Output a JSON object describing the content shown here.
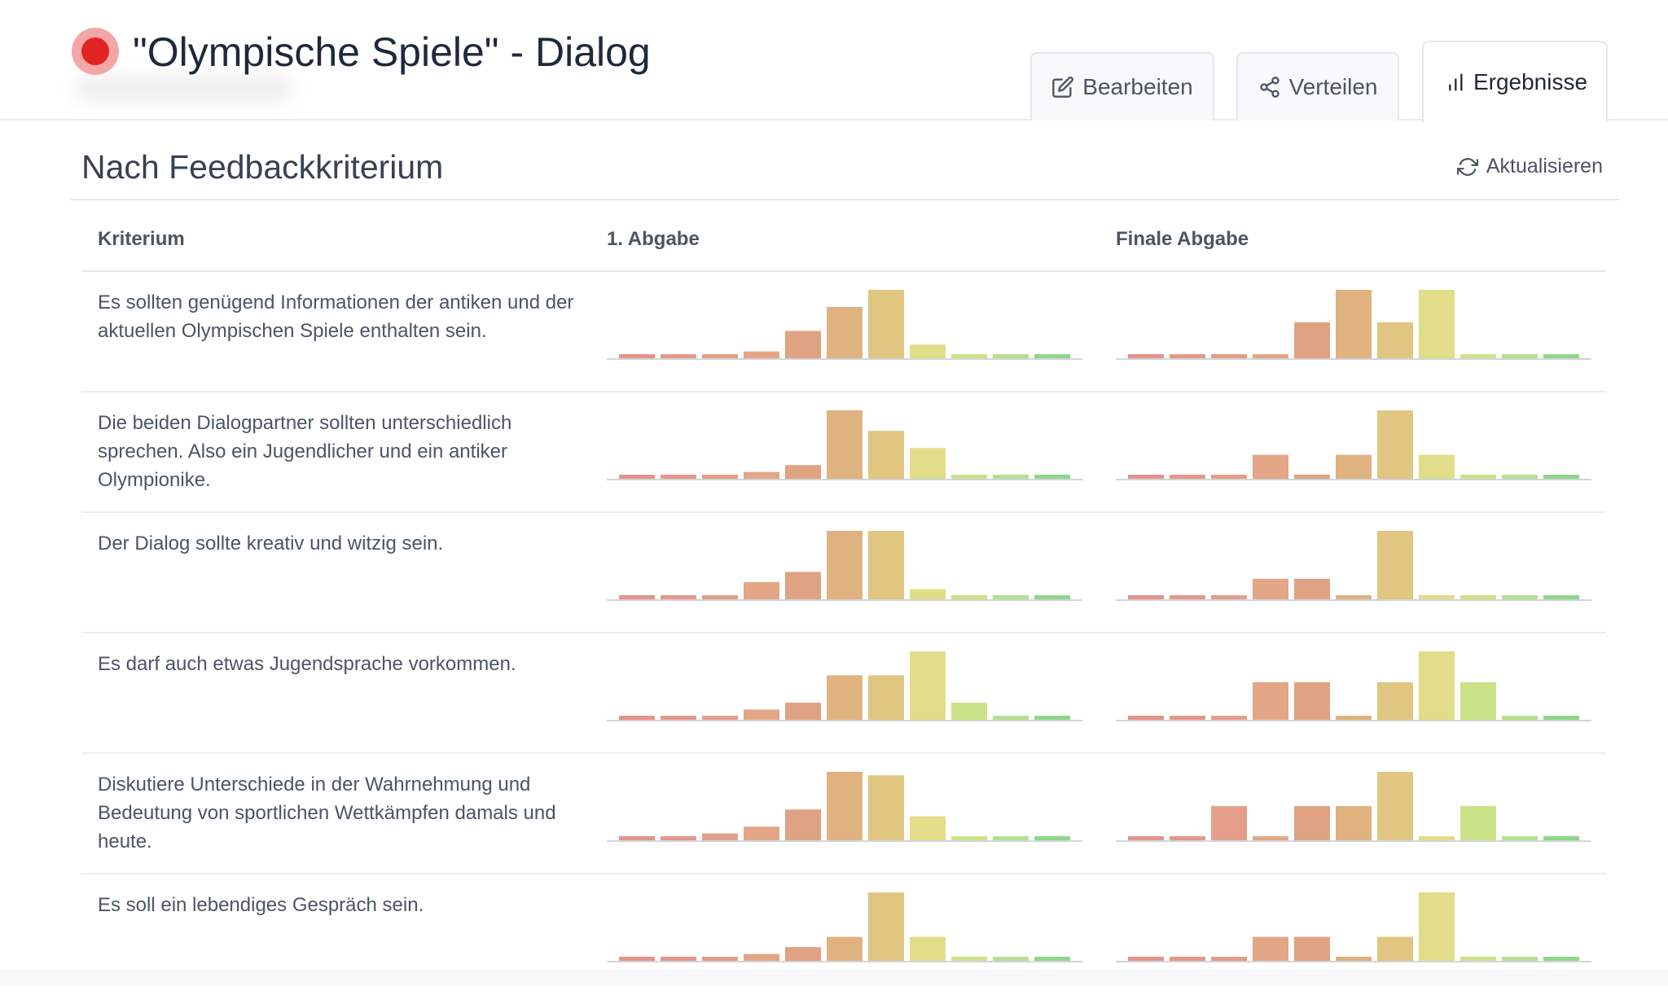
{
  "header": {
    "title": "\"Olympische Spiele\" - Dialog",
    "tabs": [
      {
        "label": "Bearbeiten",
        "icon": "edit-icon",
        "active": false
      },
      {
        "label": "Verteilen",
        "icon": "share-icon",
        "active": false
      },
      {
        "label": "Ergebnisse",
        "icon": "bar-chart-icon",
        "active": true
      }
    ]
  },
  "section": {
    "title": "Nach Feedbackkriterium",
    "refresh_label": "Aktualisieren"
  },
  "table": {
    "headers": [
      "Kriterium",
      "1. Abgabe",
      "Finale Abgabe"
    ]
  },
  "colors": {
    "scale": [
      "#e5938b",
      "#e5988a",
      "#e49e89",
      "#e3a687",
      "#dfa283",
      "#dfb27f",
      "#e0c680",
      "#e1dd89",
      "#cbe288",
      "#b6e090",
      "#8fd68a"
    ],
    "accent_record": "#e02424"
  },
  "chart_data": [
    {
      "type": "bar",
      "criterion": "Es sollten genügend Informationen der antiken und der aktuellen Olympischen Spiele enthalten sein.",
      "series": [
        {
          "values": [
            1,
            1,
            1,
            2,
            8,
            15,
            20,
            4,
            1,
            1,
            1
          ]
        },
        {
          "values": [
            1,
            1,
            1,
            1,
            10,
            19,
            10,
            19,
            1,
            1,
            1
          ]
        }
      ]
    },
    {
      "type": "bar",
      "criterion": "Die beiden Dialogpartner sollten unterschiedlich sprechen. Also ein Jugendlicher und ein antiker Olympionike.",
      "series": [
        {
          "values": [
            1,
            1,
            1,
            2,
            4,
            20,
            14,
            9,
            1,
            1,
            1
          ]
        },
        {
          "values": [
            1,
            1,
            1,
            7,
            1,
            7,
            20,
            7,
            1,
            1,
            1
          ]
        }
      ]
    },
    {
      "type": "bar",
      "criterion": "Der Dialog sollte kreativ und witzig sein.",
      "series": [
        {
          "values": [
            1,
            1,
            1,
            5,
            8,
            20,
            20,
            3,
            1,
            1,
            1
          ]
        },
        {
          "values": [
            1,
            1,
            1,
            6,
            6,
            1,
            20,
            1,
            1,
            1,
            1
          ]
        }
      ]
    },
    {
      "type": "bar",
      "criterion": "Es darf auch etwas Jugendsprache vorkommen.",
      "series": [
        {
          "values": [
            1,
            1,
            1,
            3,
            5,
            13,
            13,
            20,
            5,
            1,
            1
          ]
        },
        {
          "values": [
            1,
            1,
            1,
            11,
            11,
            1,
            11,
            20,
            11,
            1,
            1
          ]
        }
      ]
    },
    {
      "type": "bar",
      "criterion": "Diskutiere Unterschiede in der Wahrnehmung und Bedeutung von sportlichen Wettkämpfen damals und heute.",
      "series": [
        {
          "values": [
            1,
            1,
            2,
            4,
            9,
            20,
            19,
            7,
            1,
            1,
            1
          ]
        },
        {
          "values": [
            1,
            1,
            10,
            1,
            10,
            10,
            20,
            1,
            10,
            1,
            1
          ]
        }
      ]
    },
    {
      "type": "bar",
      "criterion": "Es soll ein lebendiges Gespräch sein.",
      "series": [
        {
          "values": [
            1,
            1,
            1,
            2,
            4,
            7,
            20,
            7,
            1,
            1,
            1
          ]
        },
        {
          "values": [
            1,
            1,
            1,
            7,
            7,
            1,
            7,
            20,
            1,
            1,
            1
          ]
        }
      ]
    }
  ]
}
